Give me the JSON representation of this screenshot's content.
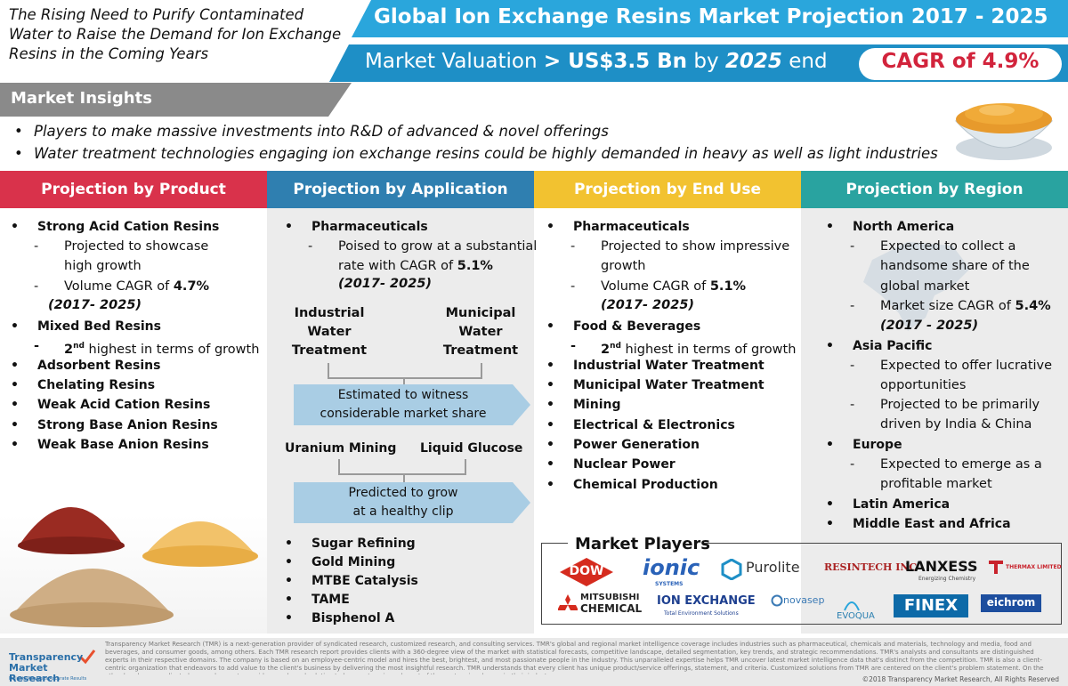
{
  "header": {
    "tagline": "The Rising Need to Purify Contaminated Water to Raise the Demand for Ion Exchange Resins in the Coming Years",
    "title": "Global Ion Exchange Resins Market Projection 2017 - 2025",
    "valuation_prefix": "Market Valuation",
    "valuation_value": "> US$3.5 Bn",
    "valuation_by": "by",
    "valuation_year": "2025",
    "valuation_end": "end",
    "cagr": "CAGR of 4.9%"
  },
  "insights": {
    "title": "Market Insights",
    "items": [
      "Players to make massive investments into R&D of advanced & novel offerings",
      "Water treatment technologies engaging ion exchange resins could be highly demanded in heavy as well as light industries"
    ]
  },
  "columns": {
    "product": {
      "title": "Projection by Product",
      "i1": "Strong Acid Cation Resins",
      "i1_s1a": "Projected to showcase",
      "i1_s1b": "high growth",
      "i1_s2_pre": "Volume CAGR of ",
      "i1_s2_val": "4.7%",
      "i1_s2_period": "(2017- 2025)",
      "i2": "Mixed Bed Resins",
      "i2_s1_num": "2",
      "i2_s1_sup": "nd",
      "i2_s1_rest": " highest in terms of growth",
      "rest": [
        "Adsorbent Resins",
        "Chelating Resins",
        "Weak Acid Cation Resins",
        "Strong Base Anion Resins",
        "Weak Base Anion Resins"
      ]
    },
    "application": {
      "title": "Projection by Application",
      "i1": "Pharmaceuticals",
      "i1_s1a": "Poised to grow at a substantial",
      "i1_s1b_pre": "rate with CAGR of ",
      "i1_s1b_val": "5.1%",
      "i1_period": "(2017- 2025)",
      "iwt": [
        "Industrial",
        "Water",
        "Treatment"
      ],
      "mwt": [
        "Municipal",
        "Water",
        "Treatment"
      ],
      "box1": [
        "Estimated to witness",
        "considerable market share"
      ],
      "uranium": "Uranium Mining",
      "glucose": "Liquid Glucose",
      "box2": [
        "Predicted to grow",
        "at a healthy clip"
      ],
      "rest": [
        "Sugar Refining",
        "Gold Mining",
        "MTBE Catalysis",
        "TAME",
        "Bisphenol A"
      ]
    },
    "enduse": {
      "title": "Projection by End Use",
      "i1": "Pharmaceuticals",
      "i1_s1a": "Projected to show impressive",
      "i1_s1b": "growth",
      "i1_s2_pre": "Volume CAGR of ",
      "i1_s2_val": "5.1%",
      "i1_period": "(2017- 2025)",
      "i2": "Food & Beverages",
      "i2_s1_num": "2",
      "i2_s1_sup": "nd",
      "i2_s1_rest": " highest in terms of growth",
      "rest": [
        "Industrial Water Treatment",
        "Municipal Water Treatment",
        "Mining",
        "Electrical & Electronics",
        "Power Generation",
        "Nuclear Power",
        "Chemical Production"
      ]
    },
    "region": {
      "title": "Projection by Region",
      "na": "North America",
      "na_s1": [
        "Expected to collect a",
        "handsome share of the",
        "global market"
      ],
      "na_s2_pre": "Market size CAGR of ",
      "na_s2_val": "5.4%",
      "na_period": "(2017 - 2025)",
      "ap": "Asia Pacific",
      "ap_s1": [
        "Expected to offer lucrative",
        "opportunities"
      ],
      "ap_s2": [
        "Projected to be primarily",
        "driven by India & China"
      ],
      "eu": "Europe",
      "eu_s1": [
        "Expected to emerge as a",
        "profitable market"
      ],
      "la": "Latin America",
      "mea": "Middle East and Africa"
    }
  },
  "players": {
    "title": "Market Players",
    "dow": "DOW",
    "ionic": "ionic",
    "ionic_sub": "SYSTEMS",
    "purolite": "Purolite",
    "resintech": "RESINTECH INC",
    "lanxess": "LANXESS",
    "lanxess_sub": "Energizing Chemistry",
    "thermax": "THERMAX LIMITED",
    "mitsubishi": [
      "MITSUBISHI",
      "CHEMICAL"
    ],
    "ionexchange": "ION EXCHANGE",
    "ionexchange_sub": "Total Environment Solutions",
    "novasep": "novasep",
    "evoqua": "EVOQUA",
    "finex": "FINEX",
    "eichrom": "eichrom"
  },
  "footer": {
    "brand": "Transparency Market Research",
    "brand_sub": "Insights Analytics Accurate Results",
    "text": "Transparency Market Research (TMR) is a next-generation provider of syndicated research, customized research, and consulting services. TMR's global and regional market intelligence coverage includes industries such as pharmaceutical, chemicals and materials, technology and media, food and beverages, and consumer goods, among others. Each TMR research report provides clients with a 360-degree view of the market with statistical forecasts, competitive landscape, detailed segmentation, key trends, and strategic recommendations. TMR's analysts and consultants are distinguished experts in their respective domains. The company is based on an employee-centric model and hires the best, brightest, and most passionate people in the industry. This unparalleled expertise helps TMR uncover latest market intelligence data that's distinct from the competition. TMR is also a client-centric organization that endeavors to add value to the client's business by delivering the most insightful research. TMR understands that every client has unique product/service offerings, statement, and criteria. Customized solutions from TMR are centered on the client's problem statement. On the other hand, our syndicated research reports provide a packaged solution to keep enterprises abreast of the next major change in their industry.",
    "copyright": "©2018 Transparency Market Research, All Rights Reserved"
  }
}
